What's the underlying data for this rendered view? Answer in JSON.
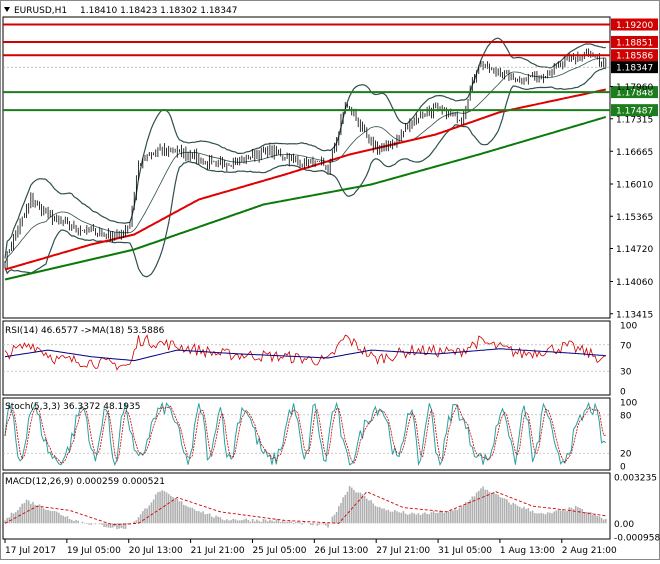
{
  "header": {
    "symbol": "EURUSD,H1",
    "ohlc": "1.18410 1.18423 1.18302 1.18347"
  },
  "colors": {
    "background": "#ffffff",
    "frame": "#000000",
    "candles": "#000000",
    "bollinger": "#2f4f4f",
    "ma_red": "#e00000",
    "ma_green": "#0a7a0a",
    "resistance_line": "#d00000",
    "support_line": "#1b7d1b",
    "rsi_line": "#d00000",
    "rsi_ma": "#000080",
    "stoch_main": "#2aa0a0",
    "stoch_signal": "#d00000",
    "macd_hist": "#b0b0b0",
    "macd_signal": "#d00000"
  },
  "chart_data": [
    {
      "type": "candlestick",
      "name": "main",
      "y_ticks": [
        "1.18586",
        "1.17960",
        "1.17848",
        "1.17487",
        "1.17315",
        "1.16665",
        "1.16010",
        "1.15365",
        "1.14720",
        "1.14060",
        "1.13415"
      ],
      "ylim": [
        1.1333,
        1.1935
      ],
      "levels": [
        {
          "value": 1.192,
          "label": "1.19200",
          "color": "#d00000"
        },
        {
          "value": 1.18851,
          "label": "1.18851",
          "color": "#d00000"
        },
        {
          "value": 1.18586,
          "label": "1.18586",
          "color": "#d00000"
        },
        {
          "value": 1.17848,
          "label": "1.17848",
          "color": "#1b7d1b"
        },
        {
          "value": 1.17487,
          "label": "1.17487",
          "color": "#1b7d1b"
        }
      ],
      "current_price": {
        "value": 1.18347,
        "label": "1.18347"
      },
      "close_anchors": [
        [
          0,
          1.145
        ],
        [
          6,
          1.151
        ],
        [
          12,
          1.157
        ],
        [
          18,
          1.1545
        ],
        [
          24,
          1.153
        ],
        [
          30,
          1.1515
        ],
        [
          36,
          1.151
        ],
        [
          42,
          1.1505
        ],
        [
          48,
          1.15
        ],
        [
          54,
          1.15
        ],
        [
          58,
          1.152
        ],
        [
          62,
          1.164
        ],
        [
          68,
          1.166
        ],
        [
          74,
          1.167
        ],
        [
          80,
          1.1665
        ],
        [
          86,
          1.166
        ],
        [
          92,
          1.1645
        ],
        [
          98,
          1.164
        ],
        [
          104,
          1.1645
        ],
        [
          110,
          1.165
        ],
        [
          116,
          1.166
        ],
        [
          122,
          1.1665
        ],
        [
          128,
          1.166
        ],
        [
          134,
          1.165
        ],
        [
          140,
          1.1645
        ],
        [
          146,
          1.164
        ],
        [
          150,
          1.163
        ],
        [
          154,
          1.169
        ],
        [
          158,
          1.176
        ],
        [
          162,
          1.174
        ],
        [
          166,
          1.171
        ],
        [
          170,
          1.168
        ],
        [
          176,
          1.167
        ],
        [
          182,
          1.169
        ],
        [
          188,
          1.172
        ],
        [
          194,
          1.1745
        ],
        [
          200,
          1.175
        ],
        [
          206,
          1.174
        ],
        [
          212,
          1.173
        ],
        [
          216,
          1.179
        ],
        [
          220,
          1.184
        ],
        [
          226,
          1.183
        ],
        [
          232,
          1.182
        ],
        [
          238,
          1.181
        ],
        [
          244,
          1.1815
        ],
        [
          250,
          1.182
        ],
        [
          256,
          1.183
        ],
        [
          262,
          1.185
        ],
        [
          266,
          1.1855
        ],
        [
          270,
          1.186
        ],
        [
          276,
          1.1845
        ],
        [
          279,
          1.1835
        ]
      ],
      "ma_red_anchors": [
        [
          0,
          1.143
        ],
        [
          40,
          1.148
        ],
        [
          60,
          1.15
        ],
        [
          90,
          1.157
        ],
        [
          130,
          1.162
        ],
        [
          160,
          1.166
        ],
        [
          200,
          1.17
        ],
        [
          230,
          1.1745
        ],
        [
          279,
          1.179
        ]
      ],
      "ma_green_anchors": [
        [
          0,
          1.141
        ],
        [
          60,
          1.147
        ],
        [
          120,
          1.156
        ],
        [
          170,
          1.16
        ],
        [
          220,
          1.166
        ],
        [
          279,
          1.1735
        ]
      ]
    },
    {
      "type": "line",
      "name": "RSI",
      "label": "RSI(14) 46.6577 ->MA(18) 53.5886",
      "y_ticks": [
        "100",
        "70",
        "30",
        "0"
      ],
      "ylim": [
        0,
        100
      ],
      "series": [
        {
          "name": "RSI(14)",
          "last": 46.6577,
          "anchors": [
            [
              0,
              55
            ],
            [
              12,
              72
            ],
            [
              24,
              48
            ],
            [
              40,
              44
            ],
            [
              58,
              38
            ],
            [
              62,
              78
            ],
            [
              80,
              68
            ],
            [
              100,
              56
            ],
            [
              130,
              52
            ],
            [
              150,
              45
            ],
            [
              158,
              82
            ],
            [
              172,
              48
            ],
            [
              190,
              62
            ],
            [
              210,
              58
            ],
            [
              220,
              75
            ],
            [
              240,
              56
            ],
            [
              262,
              68
            ],
            [
              279,
              46.66
            ]
          ]
        },
        {
          "name": "MA(18)",
          "last": 53.5886,
          "anchors": [
            [
              0,
              52
            ],
            [
              20,
              62
            ],
            [
              40,
              52
            ],
            [
              60,
              46
            ],
            [
              80,
              62
            ],
            [
              110,
              56
            ],
            [
              150,
              50
            ],
            [
              170,
              62
            ],
            [
              200,
              56
            ],
            [
              230,
              64
            ],
            [
              260,
              58
            ],
            [
              279,
              53.59
            ]
          ]
        }
      ]
    },
    {
      "type": "line",
      "name": "Stochastic",
      "label": "Stoch(5,3,3) 36.3372 48.1935",
      "y_ticks": [
        "100",
        "80",
        "20",
        "0"
      ],
      "ylim": [
        0,
        100
      ],
      "series": [
        {
          "name": "Main",
          "last": 36.3372
        },
        {
          "name": "Signal",
          "last": 48.1935
        }
      ]
    },
    {
      "type": "bar",
      "name": "MACD",
      "label": "MACD(12,26,9) 0.000259 0.000521",
      "y_ticks": [
        "0.003235",
        "0.00",
        "-0.000958"
      ],
      "ylim": [
        -0.000958,
        0.003235
      ],
      "hist_anchors": [
        [
          0,
          0.0002
        ],
        [
          10,
          0.0016
        ],
        [
          20,
          0.001
        ],
        [
          35,
          0.0001
        ],
        [
          55,
          -0.0004
        ],
        [
          62,
          0.0004
        ],
        [
          72,
          0.0023
        ],
        [
          85,
          0.0012
        ],
        [
          100,
          0.0003
        ],
        [
          125,
          0.0002
        ],
        [
          150,
          -0.0002
        ],
        [
          160,
          0.0026
        ],
        [
          175,
          0.001
        ],
        [
          190,
          0.0006
        ],
        [
          210,
          0.0009
        ],
        [
          222,
          0.0025
        ],
        [
          235,
          0.0014
        ],
        [
          250,
          0.0006
        ],
        [
          265,
          0.0011
        ],
        [
          279,
          0.00026
        ]
      ],
      "signal_anchors": [
        [
          0,
          0.0
        ],
        [
          15,
          0.0012
        ],
        [
          30,
          0.0009
        ],
        [
          50,
          -0.0001
        ],
        [
          62,
          0.0
        ],
        [
          80,
          0.0018
        ],
        [
          100,
          0.0008
        ],
        [
          130,
          0.0002
        ],
        [
          155,
          0.0
        ],
        [
          168,
          0.0022
        ],
        [
          185,
          0.0011
        ],
        [
          205,
          0.0008
        ],
        [
          228,
          0.0022
        ],
        [
          245,
          0.0012
        ],
        [
          262,
          0.0009
        ],
        [
          279,
          0.00052
        ]
      ]
    }
  ],
  "time_labels": [
    "17 Jul 2017",
    "19 Jul 05:00",
    "20 Jul 13:00",
    "21 Jul 21:00",
    "25 Jul 05:00",
    "26 Jul 13:00",
    "27 Jul 21:00",
    "31 Jul 05:00",
    "1 Aug 13:00",
    "2 Aug 21:00"
  ]
}
